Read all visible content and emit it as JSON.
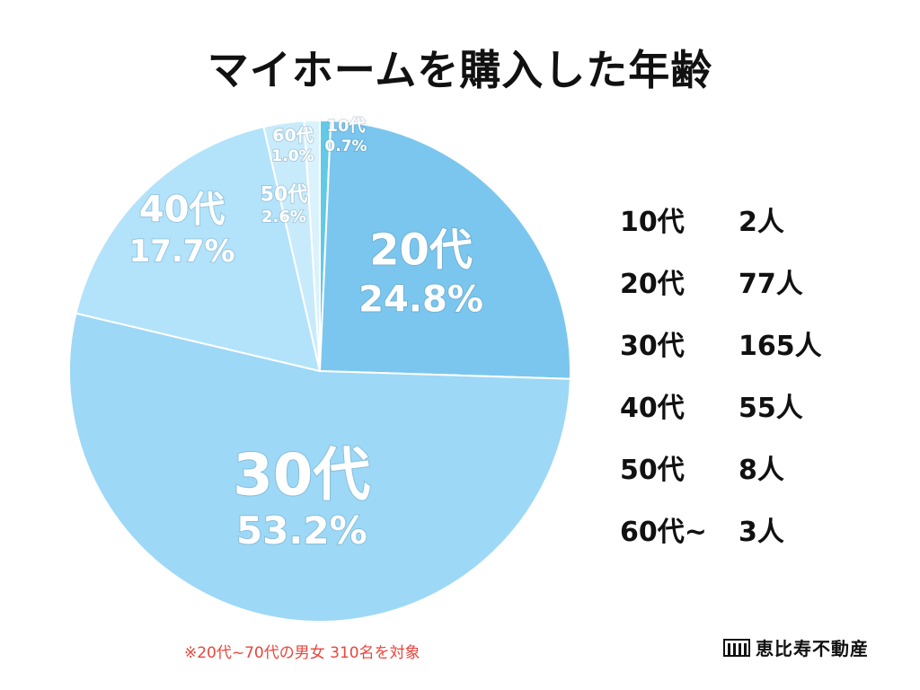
{
  "title": "マイホームを購入した年齢",
  "chart_data": {
    "type": "pie",
    "title": "マイホームを購入した年齢",
    "slices": [
      {
        "label": "10代",
        "percent_label": "0.7%",
        "value": 0.7,
        "color": "#62c9e6"
      },
      {
        "label": "20代",
        "percent_label": "24.8%",
        "value": 24.8,
        "color": "#7bc6ee"
      },
      {
        "label": "30代",
        "percent_label": "53.2%",
        "value": 53.2,
        "color": "#9dd8f6"
      },
      {
        "label": "40代",
        "percent_label": "17.7%",
        "value": 17.7,
        "color": "#b3e3fb"
      },
      {
        "label": "50代",
        "percent_label": "2.6%",
        "value": 2.6,
        "color": "#c8ebfb"
      },
      {
        "label": "60代",
        "percent_label": "1.0%",
        "value": 1.0,
        "color": "#d9f2fc"
      }
    ]
  },
  "legend": [
    {
      "category": "10代",
      "count": "2人"
    },
    {
      "category": "20代",
      "count": "77人"
    },
    {
      "category": "30代",
      "count": "165人"
    },
    {
      "category": "40代",
      "count": "55人"
    },
    {
      "category": "50代",
      "count": "8人"
    },
    {
      "category": "60代~",
      "count": "3人"
    }
  ],
  "note": "※20代~70代の男女 310名を対象",
  "brand": {
    "name": "恵比寿不動産",
    "icon": "building-logo-icon"
  }
}
